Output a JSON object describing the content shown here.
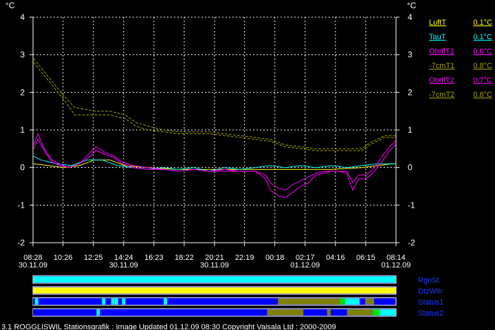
{
  "chart_data": {
    "type": "line",
    "unit": "°C",
    "ylim": [
      -2,
      4
    ],
    "yticks": [
      4,
      3,
      2,
      1,
      0,
      -1,
      -2
    ],
    "grid": true,
    "x_range_hours": [
      8.4667,
      32.2333
    ],
    "xticks": [
      {
        "time": "08:28",
        "date": "30.11.09",
        "h": 8.4667
      },
      {
        "time": "10:26",
        "date": "",
        "h": 10.4333
      },
      {
        "time": "12:25",
        "date": "",
        "h": 12.4167
      },
      {
        "time": "14:24",
        "date": "30.11.09",
        "h": 14.4
      },
      {
        "time": "16:23",
        "date": "",
        "h": 16.3833
      },
      {
        "time": "18:22",
        "date": "",
        "h": 18.3667
      },
      {
        "time": "20:21",
        "date": "30.11.09",
        "h": 20.35
      },
      {
        "time": "22:19",
        "date": "",
        "h": 22.3167
      },
      {
        "time": "00:18",
        "date": "",
        "h": 24.3
      },
      {
        "time": "02:17",
        "date": "01.12.09",
        "h": 26.2833
      },
      {
        "time": "04:16",
        "date": "",
        "h": 28.2667
      },
      {
        "time": "06:15",
        "date": "",
        "h": 30.25
      },
      {
        "time": "08:14",
        "date": "01.12.09",
        "h": 32.2333
      }
    ],
    "series": [
      {
        "name": "LuftT",
        "current": "0.1°C",
        "color": "#ffff00",
        "x": [
          8.5,
          9.5,
          10.5,
          11.5,
          12.5,
          13.5,
          14.5,
          16,
          18,
          20,
          22,
          24,
          26,
          28,
          30,
          31,
          32,
          32.2
        ],
        "y": [
          0.1,
          0.05,
          0.0,
          0.05,
          0.2,
          0.2,
          0.05,
          0.0,
          -0.05,
          -0.05,
          -0.05,
          -0.05,
          -0.05,
          -0.05,
          0.0,
          0.05,
          0.1,
          0.1
        ]
      },
      {
        "name": "TauT",
        "current": "0.1°C",
        "color": "#00ffff",
        "x": [
          8.5,
          9,
          10,
          11,
          12,
          13,
          14,
          15,
          16,
          17,
          18,
          19,
          20,
          21,
          22,
          23,
          24,
          25,
          26,
          27,
          28,
          29,
          30,
          31,
          32,
          32.2
        ],
        "y": [
          0.3,
          0.2,
          0.1,
          0.05,
          0.2,
          0.2,
          0.05,
          0.0,
          -0.05,
          0.0,
          -0.05,
          0.0,
          -0.1,
          0.0,
          -0.05,
          0.0,
          0.05,
          0.0,
          0.05,
          0.0,
          0.05,
          0.0,
          0.05,
          0.1,
          0.1,
          0.1
        ]
      },
      {
        "name": "ObrflT1",
        "current": "0.6°C",
        "color": "#ff00ff",
        "x": [
          8.5,
          8.8,
          9.2,
          9.7,
          10.2,
          10.8,
          11.5,
          12.2,
          12.6,
          13.2,
          13.8,
          14.3,
          15,
          16,
          17,
          18,
          19,
          20,
          21,
          22,
          23,
          23.7,
          24,
          24.5,
          25,
          25.5,
          26,
          26.5,
          27,
          27.5,
          28,
          28.5,
          29,
          29.4,
          29.8,
          30.2,
          30.6,
          31,
          31.4,
          31.8,
          32.2
        ],
        "y": [
          0.6,
          0.9,
          0.5,
          0.2,
          0.1,
          0.0,
          0.1,
          0.4,
          0.55,
          0.4,
          0.3,
          0.15,
          0.05,
          0.0,
          -0.05,
          -0.1,
          -0.05,
          -0.1,
          -0.05,
          -0.1,
          -0.1,
          -0.3,
          -0.6,
          -0.75,
          -0.8,
          -0.65,
          -0.5,
          -0.4,
          -0.2,
          -0.15,
          -0.1,
          -0.1,
          -0.15,
          -0.6,
          -0.3,
          -0.3,
          -0.2,
          0.0,
          0.2,
          0.45,
          0.6
        ]
      },
      {
        "name": "-7cmT1",
        "current": "0.8°C",
        "color": "#a0a000",
        "x": [
          8.5,
          9.5,
          10.5,
          11.2,
          12.5,
          13.5,
          14.5,
          15.2,
          16,
          17,
          18,
          19,
          20,
          21,
          22,
          23,
          24,
          25,
          26,
          27,
          28,
          29,
          30,
          30.5,
          31,
          31.5,
          32.2
        ],
        "y": [
          2.8,
          2.3,
          1.8,
          1.4,
          1.4,
          1.4,
          1.3,
          1.1,
          1.0,
          0.95,
          0.9,
          0.9,
          0.9,
          0.85,
          0.8,
          0.75,
          0.7,
          0.55,
          0.5,
          0.45,
          0.45,
          0.45,
          0.45,
          0.6,
          0.7,
          0.8,
          0.8
        ]
      },
      {
        "name": "ObrflT2",
        "current": "0.7°C",
        "color": "#ff00ff",
        "x": [
          8.5,
          8.8,
          9.2,
          9.7,
          10.2,
          10.8,
          11.5,
          12.2,
          12.6,
          13.2,
          13.8,
          14.3,
          15,
          16,
          17,
          18,
          19,
          20,
          21,
          22,
          23,
          23.7,
          24,
          24.5,
          25,
          25.5,
          26,
          26.5,
          27,
          27.5,
          28,
          28.5,
          29,
          29.4,
          29.8,
          30.2,
          30.6,
          31,
          31.4,
          31.8,
          32.2
        ],
        "y": [
          0.5,
          0.75,
          0.45,
          0.15,
          0.05,
          0.0,
          0.1,
          0.3,
          0.45,
          0.35,
          0.25,
          0.1,
          0.0,
          -0.05,
          -0.05,
          -0.1,
          -0.05,
          -0.1,
          -0.1,
          -0.1,
          -0.1,
          -0.2,
          -0.4,
          -0.55,
          -0.6,
          -0.45,
          -0.35,
          -0.25,
          -0.15,
          -0.1,
          -0.1,
          -0.1,
          -0.1,
          -0.4,
          -0.2,
          -0.2,
          -0.1,
          0.1,
          0.35,
          0.55,
          0.7
        ]
      },
      {
        "name": "-7cmT2",
        "current": "0.8°C",
        "color": "#a0a000",
        "x": [
          8.5,
          9.5,
          10.5,
          11.2,
          12.5,
          13.5,
          14.5,
          15.2,
          16,
          17,
          18,
          19,
          20,
          21,
          22,
          23,
          24,
          25,
          26,
          27,
          28,
          29,
          30,
          30.5,
          31,
          31.5,
          32.2
        ],
        "y": [
          2.9,
          2.4,
          1.9,
          1.6,
          1.5,
          1.5,
          1.4,
          1.2,
          1.1,
          1.0,
          0.95,
          0.95,
          0.95,
          0.9,
          0.85,
          0.8,
          0.75,
          0.6,
          0.55,
          0.5,
          0.5,
          0.5,
          0.5,
          0.65,
          0.75,
          0.85,
          0.85
        ]
      }
    ]
  },
  "status_bars": [
    {
      "label": "RgnSt",
      "segments": [
        {
          "from": 0,
          "to": 1,
          "color": "#00ffff"
        }
      ]
    },
    {
      "label": "DtzWltr",
      "segments": [
        {
          "from": 0,
          "to": 1,
          "color": "#ffff00"
        }
      ]
    },
    {
      "label": "Status1",
      "segments": [
        {
          "from": 0,
          "to": 0.675,
          "color": "#0000ff"
        },
        {
          "from": 0.675,
          "to": 0.845,
          "color": "#808000"
        },
        {
          "from": 0.845,
          "to": 0.86,
          "color": "#00e000"
        },
        {
          "from": 0.86,
          "to": 0.9,
          "color": "#00ffff"
        },
        {
          "from": 0.9,
          "to": 0.915,
          "color": "#0000ff"
        },
        {
          "from": 0.915,
          "to": 0.94,
          "color": "#808000"
        },
        {
          "from": 0.94,
          "to": 0.995,
          "color": "#0000ff"
        }
      ],
      "marks": [
        0.005,
        0.19,
        0.215,
        0.225,
        0.245,
        0.36
      ]
    },
    {
      "label": "Status2",
      "segments": [
        {
          "from": 0,
          "to": 0.645,
          "color": "#0000ff"
        },
        {
          "from": 0.645,
          "to": 0.745,
          "color": "#808000"
        },
        {
          "from": 0.745,
          "to": 0.81,
          "color": "#0000ff"
        },
        {
          "from": 0.81,
          "to": 0.82,
          "color": "#808000"
        },
        {
          "from": 0.82,
          "to": 0.865,
          "color": "#0000ff"
        },
        {
          "from": 0.865,
          "to": 0.935,
          "color": "#808000"
        },
        {
          "from": 0.935,
          "to": 0.955,
          "color": "#00e000"
        },
        {
          "from": 0.955,
          "to": 1,
          "color": "#00ffff"
        }
      ],
      "marks": [
        0.175
      ]
    }
  ],
  "footer": "3.1 ROGGLISWIL Stationsgrafik : Image Updated 01.12.09 08:30 Copyright Vaisala Ltd : 2000-2009"
}
